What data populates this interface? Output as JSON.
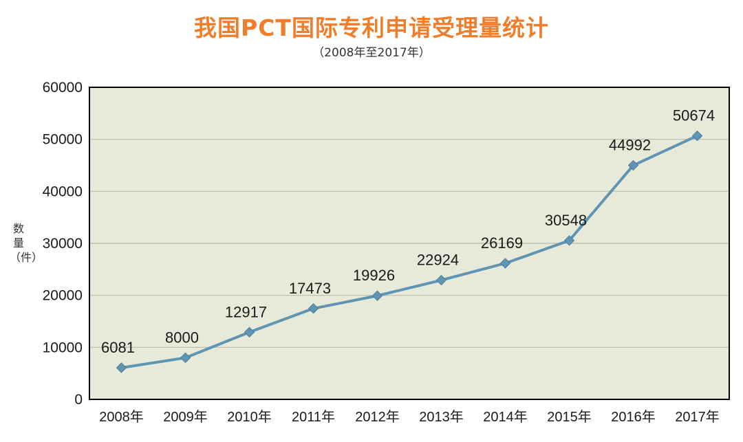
{
  "chart_data": {
    "type": "line",
    "title": "我国PCT国际专利申请受理量统计",
    "subtitle": "（2008年至2017年）",
    "ylabel": "数量（件）",
    "xlabel": "",
    "categories": [
      "2008年",
      "2009年",
      "2010年",
      "2011年",
      "2012年",
      "2013年",
      "2014年",
      "2015年",
      "2016年",
      "2017年"
    ],
    "series": [
      {
        "values": [
          6081,
          8000,
          12917,
          17473,
          19926,
          22924,
          26169,
          30548,
          44992,
          50674
        ]
      }
    ],
    "data_labels": [
      "6081",
      "8000",
      "12917",
      "17473",
      "19926",
      "22924",
      "26169",
      "30548",
      "44992",
      "50674"
    ],
    "ylim": [
      0,
      60000
    ],
    "yticks": [
      "0",
      "10000",
      "20000",
      "30000",
      "40000",
      "50000",
      "60000"
    ],
    "grid": true,
    "legend": "none",
    "colors": {
      "title": "#f07d2a",
      "plot_background": "#e8ead9",
      "gridline": "#b8bba8",
      "line": "#5f95b3",
      "frame": "#000000"
    }
  }
}
